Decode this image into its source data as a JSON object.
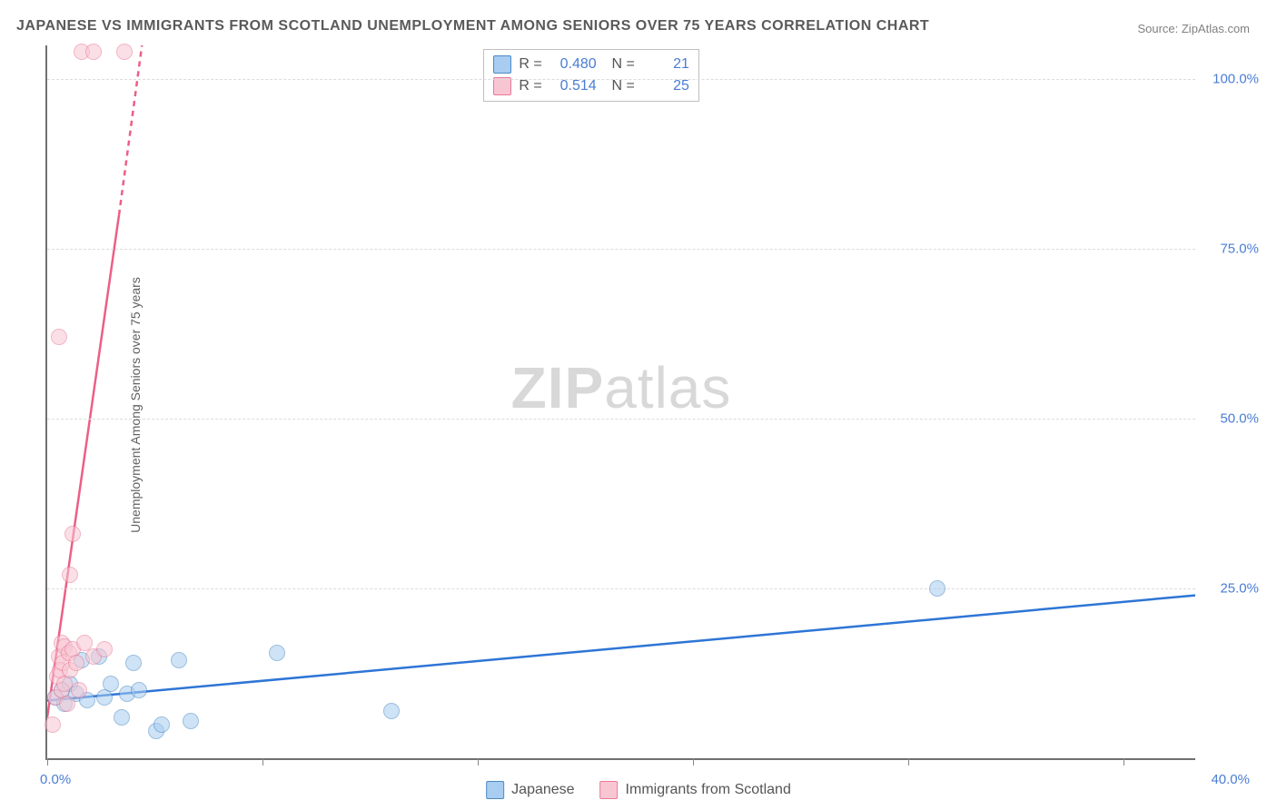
{
  "title": "JAPANESE VS IMMIGRANTS FROM SCOTLAND UNEMPLOYMENT AMONG SENIORS OVER 75 YEARS CORRELATION CHART",
  "source": "Source: ZipAtlas.com",
  "ylabel": "Unemployment Among Seniors over 75 years",
  "watermark_a": "ZIP",
  "watermark_b": "atlas",
  "chart": {
    "type": "scatter",
    "background_color": "#ffffff",
    "grid_color": "#dcdcdc",
    "axis_color": "#707070",
    "label_color": "#4a7dd4",
    "text_color": "#606060",
    "xlim": [
      0,
      40
    ],
    "ylim": [
      0,
      105
    ],
    "xtick_positions": [
      0,
      7.5,
      15,
      22.5,
      30,
      37.5
    ],
    "xtick_labels": {
      "0": "0.0%",
      "40": "40.0%"
    },
    "ytick_positions": [
      25,
      50,
      75,
      100
    ],
    "ytick_labels": {
      "25": "25.0%",
      "50": "50.0%",
      "75": "75.0%",
      "100": "100.0%"
    },
    "point_radius": 9,
    "point_opacity": 0.55,
    "line_width": 2.5,
    "series": [
      {
        "name": "Japanese",
        "color": "#5b9bd5",
        "fill": "#a8cdf0",
        "stroke": "#4a8ac4",
        "R": "0.480",
        "N": "21",
        "trend": {
          "x1": 0,
          "y1": 8.5,
          "x2": 40,
          "y2": 24.0,
          "dashed": false
        },
        "points": [
          [
            0.3,
            9.0
          ],
          [
            0.5,
            10.0
          ],
          [
            0.6,
            8.0
          ],
          [
            0.8,
            11.0
          ],
          [
            1.0,
            9.5
          ],
          [
            1.2,
            14.5
          ],
          [
            1.4,
            8.5
          ],
          [
            1.8,
            15.0
          ],
          [
            2.0,
            9.0
          ],
          [
            2.2,
            11.0
          ],
          [
            2.6,
            6.0
          ],
          [
            2.8,
            9.5
          ],
          [
            3.0,
            14.0
          ],
          [
            3.2,
            10.0
          ],
          [
            3.8,
            4.0
          ],
          [
            4.0,
            5.0
          ],
          [
            4.6,
            14.5
          ],
          [
            5.0,
            5.5
          ],
          [
            8.0,
            15.5
          ],
          [
            12.0,
            7.0
          ],
          [
            31.0,
            25.0
          ]
        ]
      },
      {
        "name": "Immigrants from Scotland",
        "color": "#ef8fa8",
        "fill": "#f8c6d3",
        "stroke": "#e87a97",
        "R": "0.514",
        "N": "25",
        "trend": {
          "x1": 0,
          "y1": 6,
          "x2": 2.5,
          "y2": 80,
          "dashed_from": 80,
          "dashed_to_x": 3.3,
          "dashed_to_y": 105
        },
        "points": [
          [
            0.2,
            5.0
          ],
          [
            0.3,
            9.0
          ],
          [
            0.35,
            12.0
          ],
          [
            0.4,
            15.0
          ],
          [
            0.45,
            13.0
          ],
          [
            0.5,
            17.0
          ],
          [
            0.5,
            10.0
          ],
          [
            0.55,
            14.0
          ],
          [
            0.6,
            16.5
          ],
          [
            0.6,
            11.0
          ],
          [
            0.7,
            8.0
          ],
          [
            0.75,
            15.5
          ],
          [
            0.8,
            27.0
          ],
          [
            0.8,
            13.0
          ],
          [
            0.9,
            33.0
          ],
          [
            0.9,
            16.0
          ],
          [
            1.0,
            14.0
          ],
          [
            1.1,
            10.0
          ],
          [
            1.3,
            17.0
          ],
          [
            1.6,
            15.0
          ],
          [
            2.0,
            16.0
          ],
          [
            0.4,
            62.0
          ],
          [
            1.2,
            104.0
          ],
          [
            1.6,
            104.0
          ],
          [
            2.7,
            104.0
          ]
        ]
      }
    ]
  },
  "legend_bottom": [
    {
      "swatch": "#a8cdf0",
      "stroke": "#4a8ac4",
      "label": "Japanese"
    },
    {
      "swatch": "#f8c6d3",
      "stroke": "#e87a97",
      "label": "Immigrants from Scotland"
    }
  ]
}
